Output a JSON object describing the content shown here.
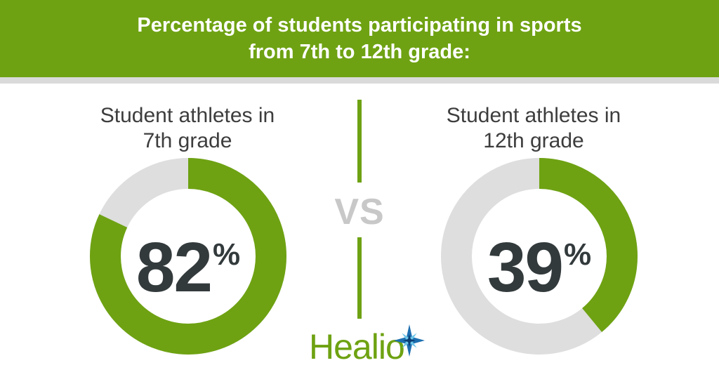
{
  "header": {
    "title_line1": "Percentage of students participating in sports",
    "title_line2": "from 7th to 12th grade:"
  },
  "vs_label": "VS",
  "logo": {
    "text": "Healio"
  },
  "chart_data": [
    {
      "type": "pie",
      "variant": "donut",
      "title_line1": "Student athletes in",
      "title_line2": "7th grade",
      "value": 82,
      "value_text": "82",
      "unit": "%",
      "max": 100,
      "colors": {
        "value": "#6ea212",
        "remainder": "#dedede"
      }
    },
    {
      "type": "pie",
      "variant": "donut",
      "title_line1": "Student athletes in",
      "title_line2": "12th grade",
      "value": 39,
      "value_text": "39",
      "unit": "%",
      "max": 100,
      "colors": {
        "value": "#6ea212",
        "remainder": "#dedede"
      }
    }
  ]
}
